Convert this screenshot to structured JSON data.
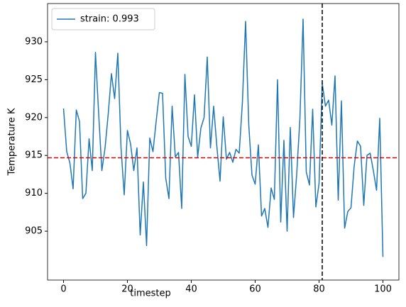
{
  "chart_data": {
    "type": "line",
    "x_label": "timestep",
    "y_label": "Temperature K",
    "x": [
      0,
      1,
      2,
      3,
      4,
      5,
      6,
      7,
      8,
      9,
      10,
      11,
      12,
      13,
      14,
      15,
      16,
      17,
      18,
      19,
      20,
      21,
      22,
      23,
      24,
      25,
      26,
      27,
      28,
      29,
      30,
      31,
      32,
      33,
      34,
      35,
      36,
      37,
      38,
      39,
      40,
      41,
      42,
      43,
      44,
      45,
      46,
      47,
      48,
      49,
      50,
      51,
      52,
      53,
      54,
      55,
      56,
      57,
      58,
      59,
      60,
      61,
      62,
      63,
      64,
      65,
      66,
      67,
      68,
      69,
      70,
      71,
      72,
      73,
      74,
      75,
      76,
      77,
      78,
      79,
      80,
      81,
      82,
      83,
      84,
      85,
      86,
      87,
      88,
      89,
      90,
      91,
      92,
      93,
      94,
      95,
      96,
      97,
      98,
      99,
      100
    ],
    "series": [
      {
        "name": "strain: 0.993",
        "color": "#1f77b4",
        "values": [
          921.2,
          915.5,
          914,
          910.6,
          921,
          919.5,
          909.3,
          910,
          917.2,
          913,
          928.6,
          920.5,
          913,
          916,
          920.5,
          925.8,
          922.5,
          928.5,
          916,
          909.8,
          918.3,
          916.5,
          913,
          916,
          904.5,
          911.5,
          903.1,
          917.3,
          915.5,
          919.5,
          923.3,
          923.2,
          912,
          909.3,
          921.5,
          914.8,
          915.4,
          908,
          925.7,
          917.5,
          916.2,
          923,
          914.8,
          918.6,
          920,
          928,
          916,
          921.5,
          916.2,
          911.6,
          920.1,
          914.5,
          915.4,
          914.1,
          915.8,
          915.3,
          922,
          932.7,
          919,
          912.4,
          911.2,
          916.4,
          907,
          908,
          905.5,
          910.7,
          909.2,
          925,
          906.2,
          917,
          905,
          918.7,
          906.8,
          912.5,
          919.8,
          933,
          912.8,
          911.1,
          921.1,
          908.2,
          911.3,
          924.5,
          921.5,
          922.3,
          919,
          925.5,
          909.1,
          922.2,
          905.4,
          907.6,
          908.1,
          913.6,
          916.9,
          916.2,
          908.4,
          915,
          915.3,
          913,
          910.4,
          919.9,
          901.6
        ]
      }
    ],
    "reference_lines": [
      {
        "axis": "y",
        "value": 914.7,
        "color": "#e00000"
      },
      {
        "axis": "x",
        "value": 81,
        "color": "#000000"
      }
    ],
    "xlim": [
      -5,
      105
    ],
    "ylim": [
      898.55,
      935.05
    ],
    "xticks": [
      0,
      20,
      40,
      60,
      80,
      100
    ],
    "yticks": [
      905,
      910,
      915,
      920,
      925,
      930
    ],
    "legend": "upper left"
  }
}
